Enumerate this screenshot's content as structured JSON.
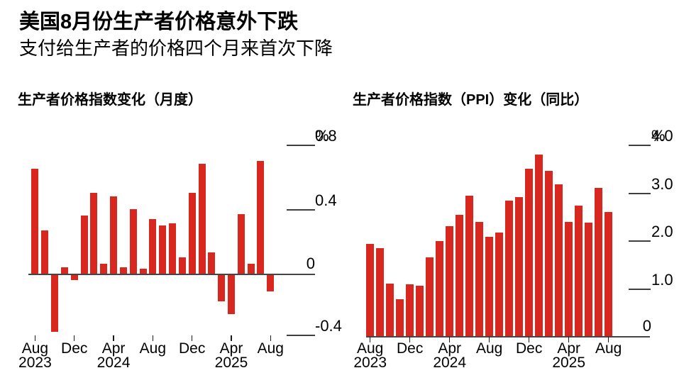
{
  "page": {
    "title": "美国8月份生产者价格意外下跌",
    "subtitle": "支付给生产者的价格四个月来首次下降"
  },
  "chart_data": [
    {
      "type": "bar",
      "id": "monthly",
      "title": "生产者价格指数变化（月度）",
      "unit": "%",
      "bar_color": "#d8271e",
      "ylim": [
        -0.5,
        0.8
      ],
      "grid": "off",
      "zero_label": "0",
      "yticks": [
        {
          "label": "0.8",
          "suffix": "%",
          "value": 0.8
        },
        {
          "label": "0.4",
          "value": 0.4
        },
        {
          "label": "-0.4",
          "value": -0.4,
          "y": 472
        }
      ],
      "xticks": [
        {
          "index": 0,
          "month": "Aug",
          "year": "2023"
        },
        {
          "index": 4,
          "month": "Dec"
        },
        {
          "index": 8,
          "month": "Apr",
          "year": "2024"
        },
        {
          "index": 12,
          "month": "Aug"
        },
        {
          "index": 16,
          "month": "Dec"
        },
        {
          "index": 20,
          "month": "Apr",
          "year": "2025"
        },
        {
          "index": 24,
          "month": "Aug"
        }
      ],
      "categories": [
        "Aug 2023",
        "Sep 2023",
        "Oct 2023",
        "Nov 2023",
        "Dec 2023",
        "Jan 2024",
        "Feb 2024",
        "Mar 2024",
        "Apr 2024",
        "May 2024",
        "Jun 2024",
        "Jul 2024",
        "Aug 2024",
        "Sep 2024",
        "Oct 2024",
        "Nov 2024",
        "Dec 2024",
        "Jan 2025",
        "Feb 2025",
        "Mar 2025",
        "Apr 2025",
        "May 2025",
        "Jun 2025",
        "Jul 2025",
        "Aug 2025"
      ],
      "values": [
        0.65,
        0.27,
        -0.36,
        0.04,
        -0.04,
        0.36,
        0.5,
        0.06,
        0.48,
        0.04,
        0.4,
        0.03,
        0.34,
        0.3,
        0.31,
        0.1,
        0.5,
        0.68,
        0.13,
        -0.17,
        -0.25,
        0.37,
        0.06,
        0.7,
        -0.11
      ]
    },
    {
      "type": "bar",
      "id": "yoy",
      "title": "生产者价格指数（PPI）变化（同比）",
      "unit": "%",
      "bar_color": "#d8271e",
      "ylim": [
        0,
        4.0
      ],
      "grid": "off",
      "zero_label": "0",
      "yticks": [
        {
          "label": "4.0",
          "suffix": "%",
          "value": 4.0
        },
        {
          "label": "3.0",
          "value": 3.0
        },
        {
          "label": "2.0",
          "value": 2.0
        },
        {
          "label": "1.0",
          "value": 1.0
        }
      ],
      "xticks": [
        {
          "index": 0,
          "month": "Aug",
          "year": "2023"
        },
        {
          "index": 4,
          "month": "Dec"
        },
        {
          "index": 8,
          "month": "Apr",
          "year": "2024"
        },
        {
          "index": 12,
          "month": "Aug"
        },
        {
          "index": 16,
          "month": "Dec"
        },
        {
          "index": 20,
          "month": "Apr",
          "year": "2025"
        },
        {
          "index": 24,
          "month": "Aug"
        }
      ],
      "categories": [
        "Aug 2023",
        "Sep 2023",
        "Oct 2023",
        "Nov 2023",
        "Dec 2023",
        "Jan 2024",
        "Feb 2024",
        "Mar 2024",
        "Apr 2024",
        "May 2024",
        "Jun 2024",
        "Jul 2024",
        "Aug 2024",
        "Sep 2024",
        "Oct 2024",
        "Nov 2024",
        "Dec 2024",
        "Jan 2025",
        "Feb 2025",
        "Mar 2025",
        "Apr 2025",
        "May 2025",
        "Jun 2025",
        "Jul 2025",
        "Aug 2025"
      ],
      "values": [
        1.92,
        1.83,
        1.09,
        0.77,
        1.08,
        1.05,
        1.64,
        1.98,
        2.3,
        2.54,
        2.93,
        2.39,
        2.07,
        2.16,
        2.83,
        2.91,
        3.49,
        3.8,
        3.45,
        3.17,
        2.39,
        2.73,
        2.37,
        3.09,
        2.6
      ]
    }
  ]
}
